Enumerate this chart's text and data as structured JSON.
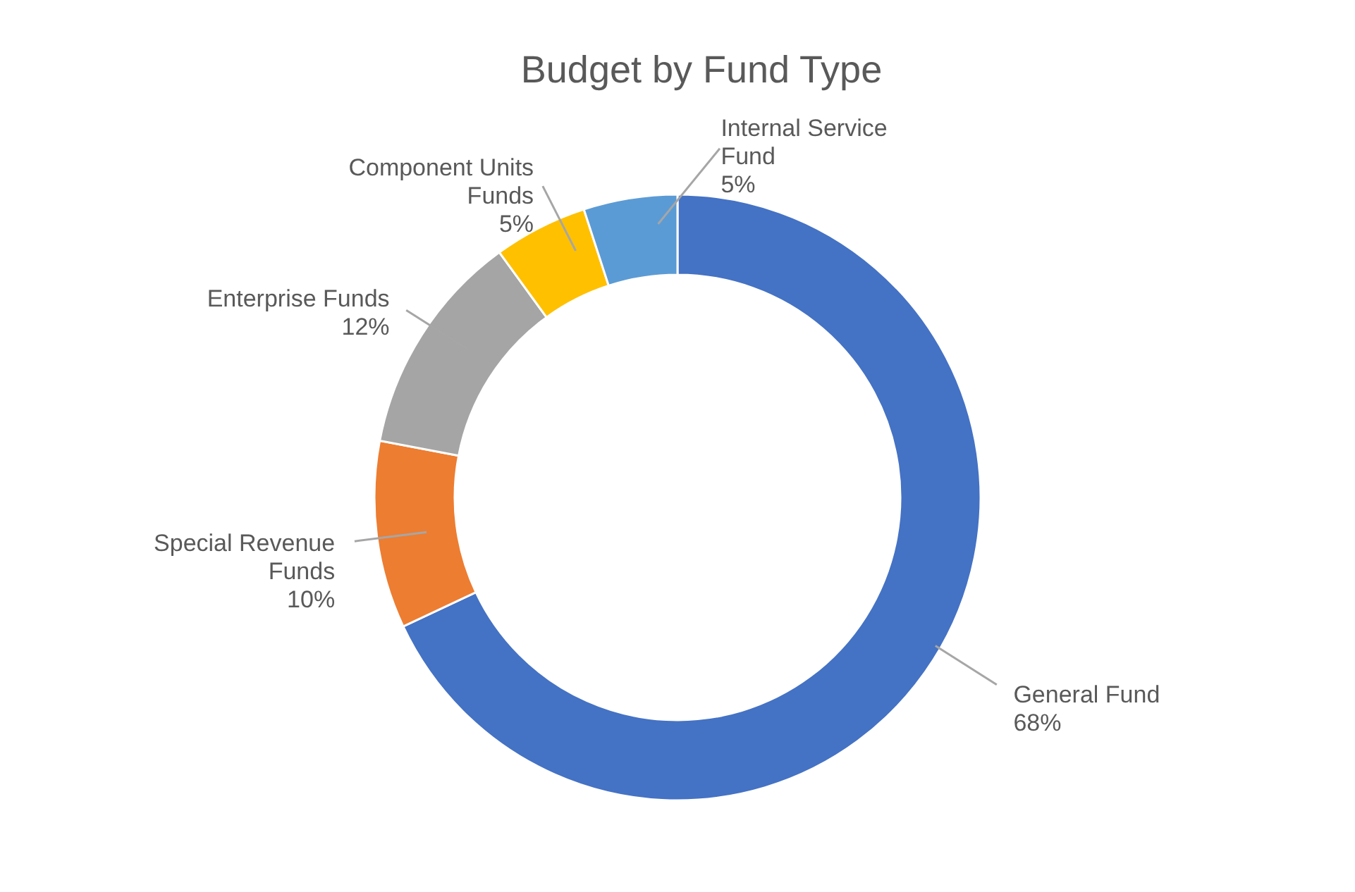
{
  "chart_data": {
    "type": "donut",
    "title": "Budget by Fund Type",
    "categories": [
      "General Fund",
      "Special Revenue Funds",
      "Enterprise Funds",
      "Component Units Funds",
      "Internal Service Fund"
    ],
    "values": [
      68,
      10,
      12,
      5,
      5
    ],
    "colors": [
      "#4472c4",
      "#ed7d31",
      "#a5a5a5",
      "#ffc000",
      "#5b9bd5"
    ],
    "value_labels": [
      "68%",
      "10%",
      "12%",
      "5%",
      "5%"
    ],
    "legend": false
  }
}
